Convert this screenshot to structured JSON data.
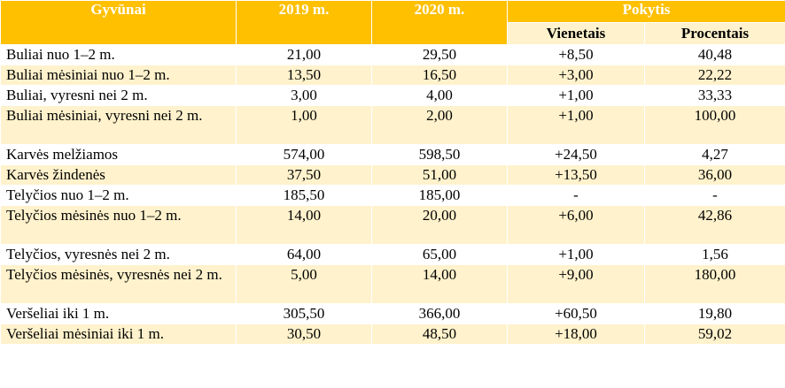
{
  "table": {
    "headers": {
      "animal": "Gyvūnai",
      "year_2019": "2019 m.",
      "year_2020": "2020 m.",
      "change": "Pokytis",
      "units": "Vienetais",
      "percent": "Procentais"
    },
    "rows": [
      {
        "animal": "Buliai nuo 1–2 m.",
        "y2019": "21,00",
        "y2020": "29,50",
        "units": "+8,50",
        "percent": "40,48"
      },
      {
        "animal": "Buliai mėsiniai nuo 1–2 m.",
        "y2019": "13,50",
        "y2020": "16,50",
        "units": "+3,00",
        "percent": "22,22"
      },
      {
        "animal": "Buliai, vyresni nei 2 m.",
        "y2019": "3,00",
        "y2020": "4,00",
        "units": "+1,00",
        "percent": "33,33"
      },
      {
        "animal": "Buliai mėsiniai, vyresni nei 2 m.",
        "y2019": "1,00",
        "y2020": "2,00",
        "units": "+1,00",
        "percent": "100,00"
      },
      {
        "animal": "Karvės melžiamos",
        "y2019": "574,00",
        "y2020": "598,50",
        "units": "+24,50",
        "percent": "4,27"
      },
      {
        "animal": "Karvės žindenės",
        "y2019": "37,50",
        "y2020": "51,00",
        "units": "+13,50",
        "percent": "36,00"
      },
      {
        "animal": "Telyčios nuo 1–2 m.",
        "y2019": "185,50",
        "y2020": "185,00",
        "units": "-",
        "percent": "-"
      },
      {
        "animal": "Telyčios mėsinės nuo 1–2 m.",
        "y2019": "14,00",
        "y2020": "20,00",
        "units": "+6,00",
        "percent": "42,86"
      },
      {
        "animal": "Telyčios, vyresnės nei 2 m.",
        "y2019": "64,00",
        "y2020": "65,00",
        "units": "+1,00",
        "percent": "1,56"
      },
      {
        "animal": "Telyčios mėsinės, vyresnės nei 2 m.",
        "y2019": "5,00",
        "y2020": "14,00",
        "units": "+9,00",
        "percent": "180,00"
      },
      {
        "animal": "Veršeliai iki 1 m.",
        "y2019": "305,50",
        "y2020": "366,00",
        "units": "+60,50",
        "percent": "19,80"
      },
      {
        "animal": "Veršeliai mėsiniai iki 1 m.",
        "y2019": "30,50",
        "y2020": "48,50",
        "units": "+18,00",
        "percent": "59,02"
      }
    ]
  },
  "colors": {
    "header_bg": "#ffc000",
    "header_text": "#ffffff",
    "band_bg": "#fff2cc",
    "row_bg": "#ffffff"
  }
}
